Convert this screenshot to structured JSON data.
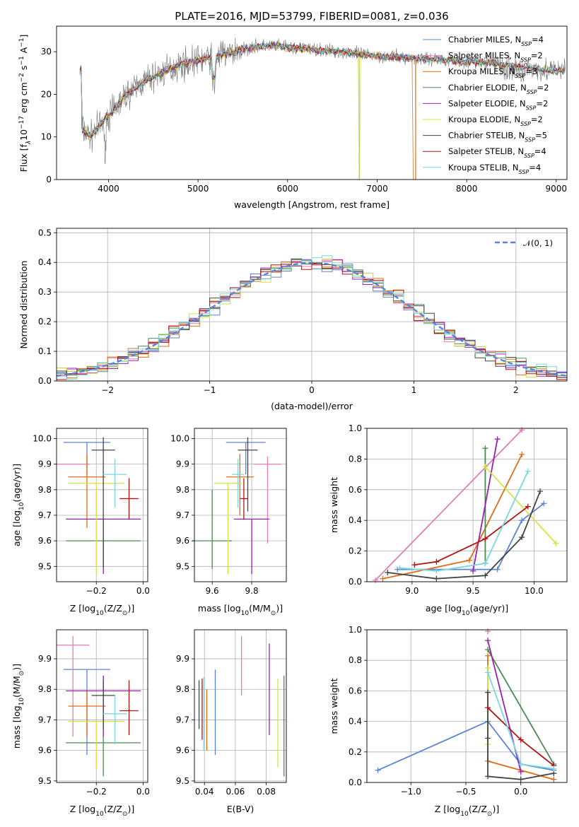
{
  "colors": {
    "Chabrier MILES": "#5b84d8",
    "Salpeter MILES": "#e37db7",
    "Kroupa MILES": "#e06d12",
    "Chabrier ELODIE": "#4d8a53",
    "Salpeter ELODIE": "#9b1fb5",
    "Kroupa ELODIE": "#d7e33e",
    "Chabrier STELIB": "#444444",
    "Salpeter STELIB": "#b11414",
    "Kroupa STELIB": "#79d8dc"
  },
  "models": [
    "Chabrier MILES",
    "Salpeter MILES",
    "Kroupa MILES",
    "Chabrier ELODIE",
    "Salpeter ELODIE",
    "Kroupa ELODIE",
    "Chabrier STELIB",
    "Salpeter STELIB",
    "Kroupa STELIB"
  ],
  "chart_data": [
    {
      "id": "spectrum",
      "type": "line",
      "title": "PLATE=2016, MJD=53799, FIBERID=0081, z=0.036",
      "xlabel": "wavelength [Angstrom, rest frame]",
      "ylabel": "Flux [fλ10⁻¹⁷ erg cm⁻² s⁻¹ A⁻¹]",
      "xlim": [
        3420,
        9120
      ],
      "ylim": [
        0,
        36
      ],
      "xticks": [
        "4000",
        "5000",
        "6000",
        "7000",
        "8000",
        "9000"
      ],
      "yticks": [
        "0",
        "10",
        "20",
        "30"
      ],
      "legend": [
        {
          "base": "Chabrier MILES, N",
          "sub": "SSP",
          "tail": "=4"
        },
        {
          "base": "Salpeter MILES, N",
          "sub": "SSP",
          "tail": "=2"
        },
        {
          "base": "Kroupa MILES, N",
          "sub": "SSP",
          "tail": "=3"
        },
        {
          "base": "Chabrier ELODIE, N",
          "sub": "SSP",
          "tail": "=2"
        },
        {
          "base": "Salpeter ELODIE, N",
          "sub": "SSP",
          "tail": "=2"
        },
        {
          "base": "Kroupa ELODIE, N",
          "sub": "SSP",
          "tail": "=2"
        },
        {
          "base": "Chabrier STELIB, N",
          "sub": "SSP",
          "tail": "=5"
        },
        {
          "base": "Salpeter STELIB, N",
          "sub": "SSP",
          "tail": "=4"
        },
        {
          "base": "Kroupa STELIB, N",
          "sub": "SSP",
          "tail": "=4"
        }
      ],
      "legend_loc": "upper right",
      "continuum": [
        [
          3700,
          12
        ],
        [
          3800,
          10
        ],
        [
          3950,
          14
        ],
        [
          4050,
          16
        ],
        [
          4200,
          20
        ],
        [
          4400,
          23
        ],
        [
          4600,
          25
        ],
        [
          4800,
          27
        ],
        [
          5000,
          28
        ],
        [
          5200,
          29
        ],
        [
          5400,
          30
        ],
        [
          5600,
          31
        ],
        [
          5800,
          31.5
        ],
        [
          6000,
          31
        ],
        [
          6300,
          30.5
        ],
        [
          6600,
          30
        ],
        [
          7000,
          29
        ],
        [
          7400,
          28.5
        ],
        [
          7800,
          28
        ],
        [
          8200,
          27.5
        ],
        [
          8600,
          26.5
        ],
        [
          9000,
          25.5
        ]
      ],
      "dips": [
        [
          5175,
          21
        ],
        [
          6800,
          0
        ],
        [
          7420,
          0
        ],
        [
          3960,
          9
        ]
      ]
    },
    {
      "id": "residuals",
      "type": "histogram",
      "xlabel": "(data-model)/error",
      "ylabel": "Normed distribution",
      "xlim": [
        -2.5,
        2.5
      ],
      "ylim": [
        0,
        0.515
      ],
      "xticks": [
        "−2",
        "−1",
        "0",
        "1",
        "2"
      ],
      "yticks": [
        "0.0",
        "0.1",
        "0.2",
        "0.3",
        "0.4",
        "0.5"
      ],
      "bin_width": 0.1,
      "legend": "𝒩(0, 1)",
      "grid": true
    },
    {
      "id": "age_vs_Z",
      "type": "errorbar",
      "xlabel": "Z [log10(Z/Z⊙)]",
      "ylabel": "age  [log10(age/yr)]",
      "xlim": [
        -0.37,
        0.02
      ],
      "ylim": [
        9.44,
        10.04
      ],
      "xticks": [
        "−0.2",
        "0.0"
      ],
      "yticks": [
        "9.5",
        "9.6",
        "9.7",
        "9.8",
        "9.9",
        "10.0"
      ],
      "points": [
        {
          "model": "Chabrier MILES",
          "x": -0.24,
          "xerr": 0.1,
          "y": 9.985,
          "yerr": [
            0.125,
            0.0
          ]
        },
        {
          "model": "Salpeter MILES",
          "x": -0.3,
          "xerr": 0.07,
          "y": 9.9,
          "yerr": [
            0.0,
            0.0
          ]
        },
        {
          "model": "Kroupa MILES",
          "x": -0.24,
          "xerr": 0.08,
          "y": 9.85,
          "yerr": [
            0.2,
            0.09
          ]
        },
        {
          "model": "Chabrier ELODIE",
          "x": -0.17,
          "xerr": 0.16,
          "y": 9.6,
          "yerr": [
            0.11,
            0.0
          ]
        },
        {
          "model": "Salpeter ELODIE",
          "x": -0.17,
          "xerr": 0.16,
          "y": 9.685,
          "yerr": [
            0.215,
            0.0
          ]
        },
        {
          "model": "Kroupa ELODIE",
          "x": -0.2,
          "xerr": 0.12,
          "y": 9.825,
          "yerr": [
            0.355,
            0.0
          ]
        },
        {
          "model": "Chabrier STELIB",
          "x": -0.17,
          "xerr": 0.05,
          "y": 9.955,
          "yerr": [
            0.46,
            0.05
          ]
        },
        {
          "model": "Salpeter STELIB",
          "x": -0.06,
          "xerr": 0.04,
          "y": 9.765,
          "yerr": [
            0.08,
            0.08
          ]
        },
        {
          "model": "Kroupa STELIB",
          "x": -0.12,
          "xerr": 0.05,
          "y": 9.86,
          "yerr": [
            0.13,
            0.06
          ]
        }
      ]
    },
    {
      "id": "age_vs_mass",
      "type": "errorbar",
      "xlabel": "mass [log10(M/M⊙)]",
      "ylabel": "",
      "xlim": [
        9.51,
        9.975
      ],
      "ylim": [
        9.44,
        10.04
      ],
      "xticks": [
        "9.6",
        "9.8"
      ],
      "yticks": [
        "9.5",
        "9.6",
        "9.7",
        "9.8",
        "9.9",
        "10.0"
      ],
      "points": [
        {
          "model": "Chabrier MILES",
          "x": 9.77,
          "xerr": 0.1,
          "y": 9.985,
          "yerr": [
            0.125,
            0.0
          ]
        },
        {
          "model": "Salpeter MILES",
          "x": 9.88,
          "xerr": 0.07,
          "y": 9.9,
          "yerr": [
            0.31,
            0.03
          ]
        },
        {
          "model": "Kroupa MILES",
          "x": 9.74,
          "xerr": 0.07,
          "y": 9.85,
          "yerr": [
            0.15,
            0.09
          ]
        },
        {
          "model": "Chabrier ELODIE",
          "x": 9.6,
          "xerr": 0.1,
          "y": 9.6,
          "yerr": [
            0.11,
            0.2
          ]
        },
        {
          "model": "Salpeter ELODIE",
          "x": 9.8,
          "xerr": 0.09,
          "y": 9.685,
          "yerr": [
            0.215,
            0.0
          ]
        },
        {
          "model": "Kroupa ELODIE",
          "x": 9.68,
          "xerr": 0.07,
          "y": 9.825,
          "yerr": [
            0.355,
            0.0
          ]
        },
        {
          "model": "Chabrier STELIB",
          "x": 9.78,
          "xerr": 0.05,
          "y": 9.955,
          "yerr": [
            0.24,
            0.05
          ]
        },
        {
          "model": "Salpeter STELIB",
          "x": 9.76,
          "xerr": 0.02,
          "y": 9.765,
          "yerr": [
            0.08,
            0.08
          ]
        },
        {
          "model": "Kroupa STELIB",
          "x": 9.73,
          "xerr": 0.03,
          "y": 9.86,
          "yerr": [
            0.13,
            0.06
          ]
        }
      ]
    },
    {
      "id": "weight_vs_age",
      "type": "line",
      "xlabel": "age  [log10(age/yr)]",
      "ylabel": "mass weight",
      "xlim": [
        8.63,
        10.27
      ],
      "ylim": [
        0,
        1
      ],
      "xticks": [
        "9.0",
        "9.5",
        "10.0"
      ],
      "yticks": [
        "0.0",
        "0.2",
        "0.4",
        "0.6",
        "0.8",
        "1.0"
      ],
      "series": [
        {
          "model": "Chabrier MILES",
          "x": [
            8.88,
            9.7,
            9.9,
            10.08
          ],
          "y": [
            0.08,
            0.08,
            0.4,
            0.51
          ]
        },
        {
          "model": "Salpeter MILES",
          "x": [
            8.7,
            9.9
          ],
          "y": [
            0.01,
            0.99
          ]
        },
        {
          "model": "Kroupa MILES",
          "x": [
            8.76,
            9.47,
            9.9
          ],
          "y": [
            0.02,
            0.14,
            0.83
          ]
        },
        {
          "model": "Chabrier ELODIE",
          "x": [
            9.6,
            9.6
          ],
          "y": [
            0.12,
            0.87
          ]
        },
        {
          "model": "Salpeter ELODIE",
          "x": [
            9.5,
            9.7
          ],
          "y": [
            0.07,
            0.93
          ]
        },
        {
          "model": "Kroupa ELODIE",
          "x": [
            9.6,
            10.18
          ],
          "y": [
            0.75,
            0.25
          ]
        },
        {
          "model": "Chabrier STELIB",
          "x": [
            8.8,
            9.2,
            9.6,
            9.9,
            10.05
          ],
          "y": [
            0.06,
            0.02,
            0.04,
            0.29,
            0.59
          ]
        },
        {
          "model": "Salpeter STELIB",
          "x": [
            9.02,
            9.2,
            9.6,
            9.95
          ],
          "y": [
            0.11,
            0.13,
            0.28,
            0.49
          ]
        },
        {
          "model": "Kroupa STELIB",
          "x": [
            8.9,
            9.2,
            9.6,
            9.95
          ],
          "y": [
            0.09,
            0.07,
            0.12,
            0.72
          ]
        }
      ]
    },
    {
      "id": "mass_vs_Z",
      "type": "errorbar",
      "xlabel": "Z [log10(Z/Z⊙)]",
      "ylabel": "mass [log10(M/M⊙)]",
      "xlim": [
        -0.37,
        0.02
      ],
      "ylim": [
        9.495,
        9.995
      ],
      "xticks": [
        "−0.2",
        "0.0"
      ],
      "yticks": [
        "9.5",
        "9.6",
        "9.7",
        "9.8",
        "9.9"
      ],
      "points": [
        {
          "model": "Chabrier MILES",
          "x": -0.24,
          "xerr": 0.1,
          "y": 9.865,
          "yerr": [
            0.28,
            0.0
          ]
        },
        {
          "model": "Salpeter MILES",
          "x": -0.3,
          "xerr": 0.07,
          "y": 9.945,
          "yerr": [
            0.3,
            0.03
          ]
        },
        {
          "model": "Kroupa MILES",
          "x": -0.24,
          "xerr": 0.08,
          "y": 9.745,
          "yerr": [
            0.1,
            0.05
          ]
        },
        {
          "model": "Chabrier ELODIE",
          "x": -0.17,
          "xerr": 0.16,
          "y": 9.625,
          "yerr": [
            0.11,
            0.22
          ]
        },
        {
          "model": "Salpeter ELODIE",
          "x": -0.17,
          "xerr": 0.16,
          "y": 9.795,
          "yerr": [
            0.15,
            0.05
          ]
        },
        {
          "model": "Kroupa ELODIE",
          "x": -0.2,
          "xerr": 0.12,
          "y": 9.695,
          "yerr": [
            0.155,
            0.0
          ]
        },
        {
          "model": "Chabrier STELIB",
          "x": -0.17,
          "xerr": 0.05,
          "y": 9.78,
          "yerr": [
            0.11,
            0.05
          ]
        },
        {
          "model": "Salpeter STELIB",
          "x": -0.06,
          "xerr": 0.04,
          "y": 9.73,
          "yerr": [
            0.08,
            0.1
          ]
        },
        {
          "model": "Kroupa STELIB",
          "x": -0.12,
          "xerr": 0.05,
          "y": 9.72,
          "yerr": [
            0.1,
            0.06
          ]
        }
      ]
    },
    {
      "id": "mass_vs_ebv",
      "type": "errorbar",
      "xlabel": "E(B-V)",
      "ylabel": "",
      "xlim": [
        0.0335,
        0.093
      ],
      "ylim": [
        9.495,
        9.995
      ],
      "xticks": [
        "0.04",
        "0.06",
        "0.08"
      ],
      "yticks": [
        "9.5",
        "9.6",
        "9.7",
        "9.8",
        "9.9"
      ],
      "points": [
        {
          "model": "Chabrier MILES",
          "x": 0.047,
          "y": 9.725,
          "yerr": [
            0.14,
            0.14
          ]
        },
        {
          "model": "Salpeter MILES",
          "x": 0.064,
          "y": 9.88,
          "yerr": [
            0.1,
            0.095
          ]
        },
        {
          "model": "Kroupa MILES",
          "x": 0.0415,
          "y": 9.7,
          "yerr": [
            0.1,
            0.1
          ]
        },
        {
          "model": "Chabrier ELODIE",
          "x": 0.0915,
          "y": 9.68,
          "yerr": [
            0.165,
            0.165
          ]
        },
        {
          "model": "Salpeter ELODIE",
          "x": 0.082,
          "y": 9.8,
          "yerr": [
            0.15,
            0.15
          ]
        },
        {
          "model": "Kroupa ELODIE",
          "x": 0.0875,
          "y": 9.69,
          "yerr": [
            0.145,
            0.145
          ]
        },
        {
          "model": "Chabrier STELIB",
          "x": 0.0365,
          "y": 9.75,
          "yerr": [
            0.08,
            0.08
          ]
        },
        {
          "model": "Salpeter STELIB",
          "x": 0.0385,
          "y": 9.735,
          "yerr": [
            0.1,
            0.1
          ]
        },
        {
          "model": "Kroupa STELIB",
          "x": 0.0395,
          "y": 9.72,
          "yerr": [
            0.12,
            0.12
          ]
        }
      ]
    },
    {
      "id": "weight_vs_Z",
      "type": "line",
      "xlabel": "Z [log10(Z/Z⊙)]",
      "ylabel": "mass weight",
      "xlim": [
        -1.4,
        0.42
      ],
      "ylim": [
        0,
        1
      ],
      "xticks": [
        "−1.0",
        "−0.5",
        "0.0"
      ],
      "yticks": [
        "0.0",
        "0.2",
        "0.4",
        "0.6",
        "0.8",
        "1.0"
      ],
      "series": [
        {
          "model": "Chabrier MILES",
          "x": [
            -1.3,
            -0.3,
            0.0,
            0.3
          ],
          "y": [
            0.08,
            0.4,
            0.12,
            0.08
          ]
        },
        {
          "model": "Salpeter MILES",
          "x": [
            -0.3,
            -0.3
          ],
          "y": [
            0.99,
            0.99
          ]
        },
        {
          "model": "Kroupa MILES",
          "x": [
            -0.3,
            -0.3,
            0.3
          ],
          "y": [
            0.83,
            0.14,
            0.02
          ]
        },
        {
          "model": "Chabrier ELODIE",
          "x": [
            -0.3,
            0.3
          ],
          "y": [
            0.87,
            0.12
          ]
        },
        {
          "model": "Salpeter ELODIE",
          "x": [
            -0.3,
            0.0
          ],
          "y": [
            0.93,
            0.07
          ]
        },
        {
          "model": "Kroupa ELODIE",
          "x": [
            -0.3,
            -0.3
          ],
          "y": [
            0.75,
            0.25
          ]
        },
        {
          "model": "Chabrier STELIB",
          "x": [
            -0.3,
            -0.3,
            -0.3,
            0.0,
            0.3
          ],
          "y": [
            0.59,
            0.29,
            0.04,
            0.02,
            0.06
          ]
        },
        {
          "model": "Salpeter STELIB",
          "x": [
            -0.3,
            0.0,
            0.3
          ],
          "y": [
            0.49,
            0.28,
            0.11
          ]
        },
        {
          "model": "Kroupa STELIB",
          "x": [
            -0.3,
            0.0,
            0.3
          ],
          "y": [
            0.72,
            0.12,
            0.09
          ]
        }
      ]
    }
  ]
}
